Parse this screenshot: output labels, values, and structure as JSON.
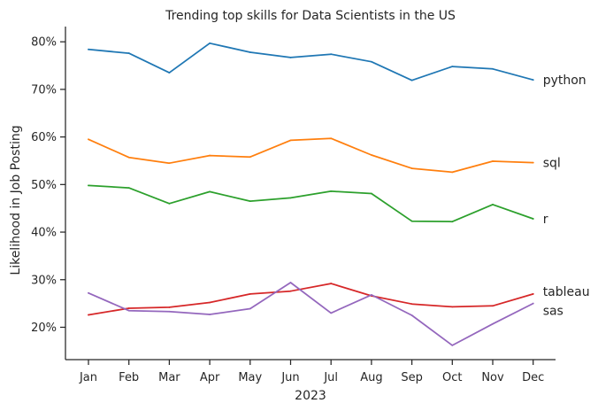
{
  "chart_data": {
    "type": "line",
    "title": "Trending top skills for Data Scientists in the US",
    "xlabel": "2023",
    "ylabel": "Likelihood in Job Posting",
    "categories": [
      "Jan",
      "Feb",
      "Mar",
      "Apr",
      "May",
      "Jun",
      "Jul",
      "Aug",
      "Sep",
      "Oct",
      "Nov",
      "Dec"
    ],
    "y_ticks": [
      20,
      30,
      40,
      50,
      60,
      70,
      80
    ],
    "y_tick_labels": [
      "20%",
      "30%",
      "40%",
      "50%",
      "60%",
      "70%",
      "80%"
    ],
    "ylim": [
      13.2,
      83.2
    ],
    "grid": false,
    "legend": "direct labels at line ends",
    "series": [
      {
        "name": "python",
        "color": "#1f77b4",
        "values": [
          78.4,
          77.6,
          73.5,
          79.7,
          77.8,
          76.7,
          77.4,
          75.8,
          71.9,
          74.8,
          74.3,
          72.0
        ]
      },
      {
        "name": "sql",
        "color": "#ff7f0e",
        "values": [
          59.5,
          55.7,
          54.5,
          56.1,
          55.8,
          59.3,
          59.7,
          56.2,
          53.4,
          52.6,
          54.9,
          54.6
        ]
      },
      {
        "name": "r",
        "color": "#2ca02c",
        "values": [
          49.8,
          49.3,
          46.0,
          48.5,
          46.5,
          47.2,
          48.6,
          48.1,
          42.3,
          42.2,
          45.8,
          42.8
        ]
      },
      {
        "name": "tableau",
        "color": "#d62728",
        "values": [
          22.6,
          24.0,
          24.2,
          25.2,
          27.0,
          27.6,
          29.2,
          26.6,
          24.9,
          24.3,
          24.5,
          27.0
        ]
      },
      {
        "name": "sas",
        "color": "#9467bd",
        "values": [
          27.2,
          23.5,
          23.3,
          22.7,
          23.9,
          29.4,
          23.0,
          26.8,
          22.5,
          16.2,
          20.7,
          25.0
        ]
      }
    ]
  }
}
